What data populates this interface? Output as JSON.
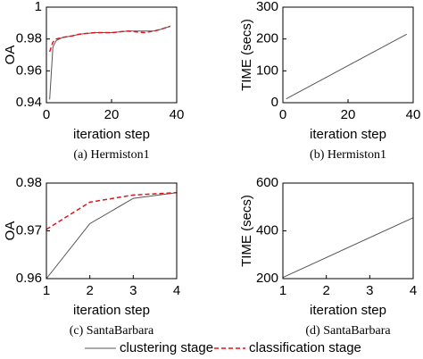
{
  "chart_data": [
    {
      "type": "line",
      "ylabel": "OA",
      "xlabel": "iteration step",
      "caption": "(a)  Hermiston1",
      "x": [
        1,
        2,
        3,
        5,
        8,
        10,
        15,
        20,
        25,
        30,
        33,
        35,
        38
      ],
      "series": [
        {
          "name": "clustering stage",
          "color": "#555555",
          "dash": false,
          "values": [
            0.942,
            0.975,
            0.979,
            0.981,
            0.982,
            0.983,
            0.984,
            0.984,
            0.985,
            0.985,
            0.985,
            0.986,
            0.988
          ]
        },
        {
          "name": "classification stage",
          "color": "#e0141e",
          "dash": true,
          "values": [
            0.972,
            0.978,
            0.98,
            0.981,
            0.982,
            0.983,
            0.984,
            0.984,
            0.985,
            0.984,
            0.985,
            0.986,
            0.988
          ]
        }
      ],
      "xlim": [
        0,
        40
      ],
      "xticks": [
        0,
        20,
        40
      ],
      "ylim": [
        0.94,
        1
      ],
      "yticks": [
        0.94,
        0.96,
        0.98,
        1
      ]
    },
    {
      "type": "line",
      "ylabel": "TIME (secs)",
      "xlabel": "iteration step",
      "caption": "(b)  Hermiston1",
      "x": [
        1,
        38
      ],
      "series": [
        {
          "color": "#555555",
          "dash": false,
          "values": [
            12,
            215
          ]
        }
      ],
      "xlim": [
        0,
        40
      ],
      "xticks": [
        0,
        20,
        40
      ],
      "ylim": [
        0,
        300
      ],
      "yticks": [
        0,
        100,
        200,
        300
      ]
    },
    {
      "type": "line",
      "ylabel": "OA",
      "xlabel": "iteration step",
      "caption": "(c)  SantaBarbara",
      "x": [
        1,
        2,
        3,
        4
      ],
      "series": [
        {
          "color": "#555555",
          "dash": false,
          "values": [
            0.96,
            0.9715,
            0.9768,
            0.978
          ]
        },
        {
          "color": "#e0141e",
          "dash": true,
          "values": [
            0.9703,
            0.976,
            0.9775,
            0.978
          ]
        }
      ],
      "xlim": [
        1,
        4
      ],
      "xticks": [
        1,
        2,
        3,
        4
      ],
      "ylim": [
        0.96,
        0.98
      ],
      "yticks": [
        0.96,
        0.97,
        0.98
      ]
    },
    {
      "type": "line",
      "ylabel": "TIME (secs)",
      "xlabel": "iteration step",
      "caption": "(d)  SantaBarbara",
      "x": [
        1,
        4
      ],
      "series": [
        {
          "color": "#555555",
          "dash": false,
          "values": [
            205,
            455
          ]
        }
      ],
      "xlim": [
        1,
        4
      ],
      "xticks": [
        1,
        2,
        3,
        4
      ],
      "ylim": [
        200,
        600
      ],
      "yticks": [
        200,
        400,
        600
      ]
    }
  ]
}
